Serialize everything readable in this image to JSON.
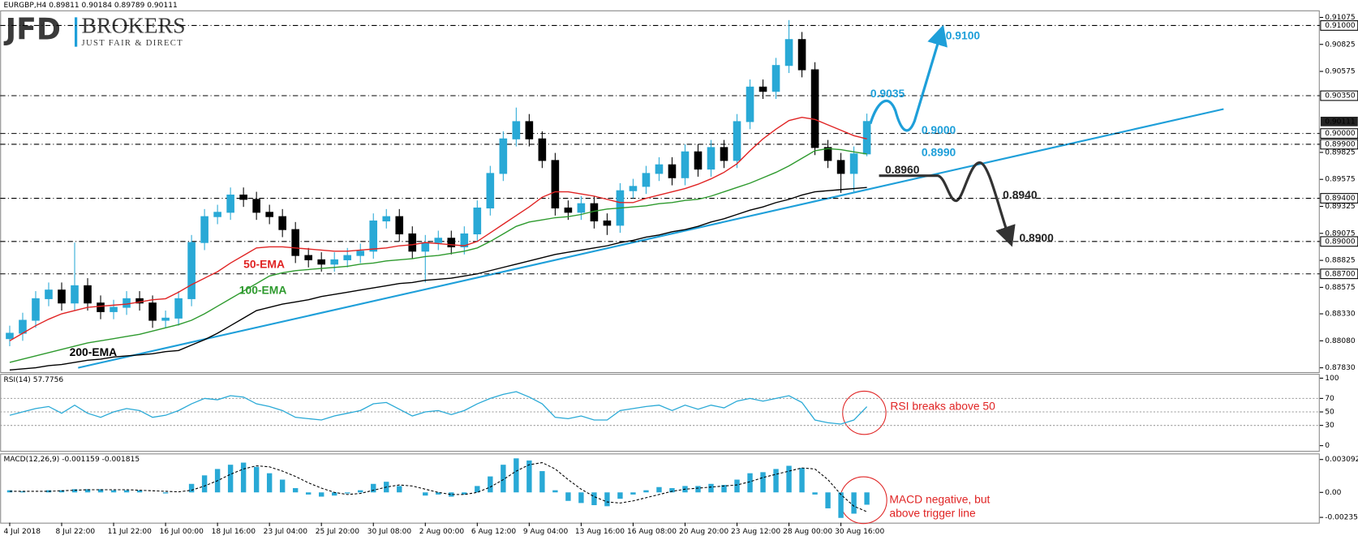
{
  "logo": {
    "name": "JFD",
    "brand": "BROKERS",
    "tagline": "JUST FAIR & DIRECT"
  },
  "chart_data": [
    {
      "type": "candlestick",
      "title": "EURGBP,H4  0.89811 0.90184 0.89789 0.90111",
      "categories": [
        "4 Jul 2018",
        null,
        null,
        null,
        "8 Jul 22:00",
        null,
        null,
        null,
        "11 Jul 22:00",
        null,
        null,
        null,
        "16 Jul 00:00",
        null,
        null,
        null,
        "18 Jul 16:00",
        null,
        null,
        null,
        "23 Jul 04:00",
        null,
        null,
        null,
        "25 Jul 20:00",
        null,
        null,
        null,
        "30 Jul 08:00",
        null,
        null,
        null,
        "2 Aug 00:00",
        null,
        null,
        null,
        "6 Aug 12:00",
        null,
        null,
        null,
        "9 Aug 04:00",
        null,
        null,
        null,
        "13 Aug 16:00",
        null,
        null,
        null,
        "16 Aug 08:00",
        null,
        null,
        null,
        "20 Aug 20:00",
        null,
        null,
        null,
        "23 Aug 12:00",
        null,
        null,
        null,
        "28 Aug 00:00",
        null,
        null,
        null,
        "30 Aug 16:00",
        null,
        null
      ],
      "open": [
        0.881,
        0.8815,
        0.8827,
        0.8847,
        0.8855,
        0.8843,
        0.8859,
        0.8843,
        0.8835,
        0.8839,
        0.8847,
        0.8843,
        0.8827,
        0.8829,
        0.8847,
        0.8899,
        0.8923,
        0.8927,
        0.8943,
        0.8939,
        0.8927,
        0.8923,
        0.8911,
        0.8887,
        0.8883,
        0.8879,
        0.8883,
        0.8887,
        0.8891,
        0.8919,
        0.8923,
        0.8907,
        0.8891,
        0.8899,
        0.8903,
        0.8895,
        0.8907,
        0.8931,
        0.8963,
        0.8995,
        0.9011,
        0.8995,
        0.8975,
        0.8931,
        0.8927,
        0.8935,
        0.8919,
        0.8915,
        0.8947,
        0.8951,
        0.8963,
        0.8971,
        0.8959,
        0.8983,
        0.8967,
        0.8987,
        0.8975,
        0.9011,
        0.9043,
        0.9039,
        0.9063,
        0.9087,
        0.9059,
        0.8987,
        0.8975,
        0.8963,
        0.89811
      ],
      "high": [
        0.8822,
        0.8834,
        0.8854,
        0.8862,
        0.8862,
        0.8899,
        0.8866,
        0.885,
        0.8846,
        0.8854,
        0.8854,
        0.885,
        0.8836,
        0.8854,
        0.8906,
        0.893,
        0.8934,
        0.895,
        0.895,
        0.8946,
        0.8934,
        0.893,
        0.8918,
        0.8894,
        0.889,
        0.889,
        0.8894,
        0.8898,
        0.8926,
        0.893,
        0.893,
        0.8914,
        0.8906,
        0.891,
        0.891,
        0.8914,
        0.8938,
        0.897,
        0.9002,
        0.9024,
        0.9018,
        0.9002,
        0.8982,
        0.8938,
        0.8942,
        0.8942,
        0.8926,
        0.8954,
        0.8958,
        0.897,
        0.8978,
        0.8978,
        0.899,
        0.899,
        0.8994,
        0.8994,
        0.9018,
        0.905,
        0.905,
        0.907,
        0.9105,
        0.9094,
        0.9066,
        0.8994,
        0.8982,
        0.8988,
        0.90184
      ],
      "low": [
        0.8803,
        0.8808,
        0.882,
        0.884,
        0.8836,
        0.8836,
        0.8836,
        0.8828,
        0.8828,
        0.8832,
        0.8836,
        0.882,
        0.882,
        0.8822,
        0.884,
        0.8892,
        0.8916,
        0.892,
        0.8932,
        0.892,
        0.8916,
        0.8904,
        0.888,
        0.8876,
        0.8872,
        0.8872,
        0.8876,
        0.888,
        0.8884,
        0.8912,
        0.89,
        0.8884,
        0.8862,
        0.8892,
        0.8888,
        0.8888,
        0.89,
        0.8924,
        0.8956,
        0.8988,
        0.8988,
        0.8968,
        0.8924,
        0.892,
        0.892,
        0.8912,
        0.8906,
        0.8908,
        0.894,
        0.8944,
        0.8956,
        0.8952,
        0.8952,
        0.896,
        0.896,
        0.8968,
        0.8968,
        0.9004,
        0.9032,
        0.9032,
        0.9056,
        0.9052,
        0.898,
        0.8968,
        0.8945,
        0.8945,
        0.89789
      ],
      "close": [
        0.8815,
        0.8827,
        0.8847,
        0.8855,
        0.8843,
        0.8859,
        0.8843,
        0.8835,
        0.8839,
        0.8847,
        0.8843,
        0.8827,
        0.8829,
        0.8847,
        0.8899,
        0.8923,
        0.8927,
        0.8943,
        0.8939,
        0.8927,
        0.8923,
        0.8911,
        0.8887,
        0.8883,
        0.8879,
        0.8883,
        0.8887,
        0.8891,
        0.8919,
        0.8923,
        0.8907,
        0.8891,
        0.8899,
        0.8903,
        0.8895,
        0.8907,
        0.8931,
        0.8963,
        0.8995,
        0.9011,
        0.8995,
        0.8975,
        0.8931,
        0.8927,
        0.8935,
        0.8919,
        0.8915,
        0.8947,
        0.8951,
        0.8963,
        0.8971,
        0.8959,
        0.8983,
        0.8967,
        0.8987,
        0.8975,
        0.9011,
        0.9043,
        0.9039,
        0.9063,
        0.9087,
        0.9059,
        0.8987,
        0.8975,
        0.8963,
        0.89811,
        0.90111
      ],
      "up_color": "#29a9d6",
      "down_color": "#000000",
      "series": [
        {
          "name": "50-EMA",
          "color": "#e02424",
          "values": [
            0.8808,
            0.8815,
            0.8822,
            0.8828,
            0.8833,
            0.8836,
            0.8839,
            0.884,
            0.8841,
            0.8842,
            0.8844,
            0.8846,
            0.8847,
            0.8853,
            0.886,
            0.8866,
            0.8872,
            0.888,
            0.8887,
            0.8894,
            0.8895,
            0.8895,
            0.8894,
            0.8893,
            0.8892,
            0.8891,
            0.8891,
            0.8892,
            0.8893,
            0.8894,
            0.8896,
            0.8897,
            0.8899,
            0.8898,
            0.8897,
            0.8896,
            0.89,
            0.8908,
            0.8916,
            0.8924,
            0.8932,
            0.8941,
            0.8946,
            0.8946,
            0.8944,
            0.8942,
            0.8939,
            0.8936,
            0.8936,
            0.894,
            0.8943,
            0.8946,
            0.8949,
            0.8953,
            0.8958,
            0.8964,
            0.8972,
            0.8984,
            0.8995,
            0.9004,
            0.9012,
            0.9015,
            0.9013,
            0.9008,
            0.9003,
            0.8998,
            0.8995
          ]
        },
        {
          "name": "100-EMA",
          "color": "#2e9a2e",
          "values": [
            0.8788,
            0.8791,
            0.8794,
            0.8797,
            0.88,
            0.8803,
            0.8806,
            0.8808,
            0.881,
            0.8812,
            0.8814,
            0.8817,
            0.882,
            0.8823,
            0.8827,
            0.8833,
            0.884,
            0.8847,
            0.8854,
            0.8861,
            0.8868,
            0.8871,
            0.8873,
            0.8874,
            0.8875,
            0.8876,
            0.8877,
            0.8879,
            0.888,
            0.8882,
            0.8883,
            0.8884,
            0.8886,
            0.8887,
            0.8889,
            0.8891,
            0.8894,
            0.89,
            0.8907,
            0.8914,
            0.8918,
            0.892,
            0.8922,
            0.8923,
            0.8925,
            0.8928,
            0.893,
            0.8931,
            0.8932,
            0.8933,
            0.8935,
            0.8936,
            0.8938,
            0.8939,
            0.8942,
            0.8946,
            0.895,
            0.8954,
            0.8959,
            0.8964,
            0.897,
            0.8977,
            0.8984,
            0.8986,
            0.8985,
            0.8983,
            0.8981
          ]
        },
        {
          "name": "200-EMA",
          "color": "#000000",
          "values": [
            0.8781,
            0.8782,
            0.8783,
            0.8785,
            0.8786,
            0.8788,
            0.879,
            0.8791,
            0.8793,
            0.8794,
            0.8795,
            0.8796,
            0.8798,
            0.8799,
            0.8804,
            0.8809,
            0.8815,
            0.8822,
            0.8829,
            0.8836,
            0.8839,
            0.8842,
            0.8844,
            0.8846,
            0.8849,
            0.8851,
            0.8853,
            0.8855,
            0.8857,
            0.8859,
            0.8861,
            0.8862,
            0.8864,
            0.8865,
            0.8866,
            0.8868,
            0.887,
            0.8873,
            0.8876,
            0.8879,
            0.8882,
            0.8885,
            0.8888,
            0.889,
            0.8892,
            0.8894,
            0.8896,
            0.8899,
            0.8901,
            0.8904,
            0.8906,
            0.8909,
            0.8911,
            0.8914,
            0.8918,
            0.8921,
            0.8925,
            0.8929,
            0.8932,
            0.8936,
            0.8939,
            0.8943,
            0.8946,
            0.8947,
            0.8948,
            0.8949,
            0.895
          ]
        }
      ],
      "ylim": [
        0.8779,
        0.9114
      ],
      "yticks": [
        0.91075,
        0.90825,
        0.90575,
        0.89825,
        0.89575,
        0.89325,
        0.89075,
        0.88825,
        0.88575,
        {
          "value": 0.8833,
          "label": "0.88330"
        },
        {
          "value": 0.8808,
          "label": "0.88080"
        },
        {
          "value": 0.8783,
          "label": "0.87830"
        }
      ],
      "levels": [
        {
          "value": 0.91,
          "label": "0.91000"
        },
        {
          "value": 0.9035,
          "label": "0.90350"
        },
        {
          "value": 0.9,
          "label": "0.90000"
        },
        {
          "value": 0.899,
          "label": "0.89900"
        },
        {
          "value": 0.894,
          "label": "0.89400"
        },
        {
          "value": 0.89,
          "label": "0.89000"
        },
        {
          "value": 0.887,
          "label": "0.88700"
        }
      ],
      "last_price": 0.90111,
      "annotations": [
        {
          "text": "0.9100",
          "color": "#1e9fd9"
        },
        {
          "text": "0.9035",
          "color": "#1e9fd9"
        },
        {
          "text": "0.9000",
          "color": "#1e9fd9"
        },
        {
          "text": "0.8990",
          "color": "#1e9fd9"
        },
        {
          "text": "0.8960",
          "color": "#222222"
        },
        {
          "text": "0.8940",
          "color": "#222222"
        },
        {
          "text": "0.8900",
          "color": "#222222"
        }
      ]
    },
    {
      "type": "line",
      "title": "RSI(14) 57.7756",
      "series": [
        {
          "color": "#29a9d6",
          "values": [
            45,
            50,
            55,
            58,
            48,
            60,
            48,
            42,
            50,
            55,
            52,
            42,
            45,
            52,
            62,
            70,
            68,
            74,
            72,
            62,
            58,
            52,
            42,
            40,
            38,
            44,
            48,
            52,
            62,
            64,
            54,
            44,
            50,
            52,
            46,
            52,
            62,
            70,
            76,
            80,
            72,
            62,
            42,
            40,
            44,
            38,
            38,
            52,
            55,
            58,
            60,
            52,
            60,
            54,
            60,
            56,
            66,
            70,
            66,
            70,
            74,
            64,
            38,
            34,
            32,
            38,
            57.7756
          ]
        }
      ],
      "ylim": [
        -9,
        106.4
      ],
      "yticks": [
        100,
        70,
        50,
        30,
        0
      ],
      "levels": [
        70,
        50,
        30
      ],
      "annotations": [
        {
          "text": "RSI breaks above 50",
          "color": "#e02424"
        }
      ]
    },
    {
      "type": "macd",
      "title": "MACD(12,26,9) -0.001159 -0.001815",
      "histogram": {
        "color": "#29a9d6",
        "values": [
          0.0002,
          0.0001,
          0,
          0.0002,
          0.0002,
          0.0003,
          0.0003,
          0.0003,
          0.0002,
          0.0002,
          0.0002,
          0,
          -0.0001,
          0,
          0.0008,
          0.0016,
          0.0022,
          0.0026,
          0.0028,
          0.0024,
          0.0018,
          0.0012,
          0.0004,
          -0.0002,
          -0.0004,
          -0.0003,
          -0.0001,
          0.0002,
          0.0008,
          0.001,
          0.0006,
          0,
          -0.0003,
          -0.0002,
          -0.0004,
          -0.0002,
          0.0006,
          0.0015,
          0.0026,
          0.0032,
          0.003,
          0.002,
          0.0002,
          -0.0008,
          -0.001,
          -0.0012,
          -0.0013,
          -0.0006,
          -0.0002,
          0.0002,
          0.0005,
          0.0004,
          0.0006,
          0.0006,
          0.0008,
          0.0007,
          0.0012,
          0.0018,
          0.0019,
          0.0022,
          0.0025,
          0.0023,
          -0.0002,
          -0.0015,
          -0.0024,
          -0.002,
          -0.001159
        ]
      },
      "signal": {
        "color": "#000000",
        "values": [
          0.0001,
          0.0001,
          0.0001,
          0.0001,
          0.00015,
          0.0002,
          0.00025,
          0.00025,
          0.00025,
          0.00025,
          0.0002,
          0.00015,
          0.0001,
          5e-05,
          0.0002,
          0.0006,
          0.0011,
          0.0017,
          0.0022,
          0.0025,
          0.0024,
          0.002,
          0.0015,
          0.0009,
          0.0004,
          0,
          -0.0002,
          -0.0001,
          0.0002,
          0.0005,
          0.0007,
          0.0006,
          0.0003,
          0,
          -0.0002,
          -0.0002,
          0,
          0.0005,
          0.0012,
          0.002,
          0.0026,
          0.0028,
          0.0022,
          0.0012,
          0.0003,
          -0.0004,
          -0.0009,
          -0.001,
          -0.0008,
          -0.0005,
          -0.0002,
          0.0001,
          0.0003,
          0.0004,
          0.0005,
          0.0006,
          0.0007,
          0.001,
          0.0014,
          0.0017,
          0.002,
          0.0023,
          0.0022,
          0.0012,
          -0.0002,
          -0.0013,
          -0.001815
        ]
      },
      "ylim": [
        -0.00285,
        0.00366
      ],
      "yticks": [
        0.003092,
        {
          "value": 0,
          "label": "0.00"
        },
        -0.002351
      ],
      "annotations": [
        {
          "text": "MACD negative, but",
          "color": "#e02424"
        },
        {
          "text": "above trigger line",
          "color": "#e02424"
        }
      ]
    }
  ]
}
